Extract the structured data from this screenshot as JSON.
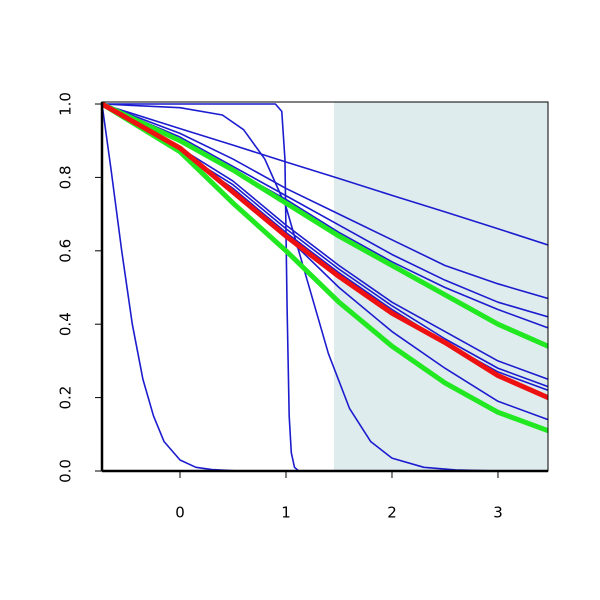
{
  "chart_data": {
    "type": "line",
    "x": [
      -0.736,
      0,
      0.5,
      1,
      1.5,
      2,
      2.5,
      3,
      3.472
    ],
    "xlim": [
      -0.736,
      3.472
    ],
    "ylim": [
      0,
      1
    ],
    "xticks": [
      0,
      1,
      2,
      3
    ],
    "yticks": [
      {
        "value": 0,
        "label": "0.0"
      },
      {
        "value": 0.2,
        "label": "0.2"
      },
      {
        "value": 0.4,
        "label": "0.4"
      },
      {
        "value": 0.6,
        "label": "0.6"
      },
      {
        "value": 0.8,
        "label": "0.8"
      },
      {
        "value": 1,
        "label": "1.0"
      }
    ],
    "shaded_region": {
      "xlim": [
        1.453,
        3.472
      ],
      "color": "#dfeced"
    },
    "series": [
      {
        "color": "#1c1ccf",
        "line_width": 1.6,
        "x": [
          -0.736,
          -0.65,
          -0.55,
          -0.45,
          -0.35,
          -0.25,
          -0.15,
          0,
          0.15,
          0.3,
          0.5,
          1,
          3.472
        ],
        "values": [
          1,
          0.82,
          0.6,
          0.4,
          0.25,
          0.15,
          0.08,
          0.03,
          0.01,
          0.004,
          0.001,
          0,
          0
        ]
      },
      {
        "color": "#1c1ccf",
        "line_width": 1.6,
        "x": [
          -0.736,
          0.5,
          0.9,
          0.96,
          0.99,
          1.01,
          1.03,
          1.05,
          1.08,
          1.12,
          3.472
        ],
        "values": [
          1,
          1,
          1,
          0.98,
          0.85,
          0.45,
          0.15,
          0.05,
          0.01,
          0,
          0
        ]
      },
      {
        "color": "#1c1ccf",
        "line_width": 1.6,
        "x": [
          -0.736,
          0,
          0.4,
          0.6,
          0.8,
          1,
          1.2,
          1.4,
          1.6,
          1.8,
          2,
          2.3,
          2.6,
          3,
          3.472
        ],
        "values": [
          1,
          0.99,
          0.97,
          0.93,
          0.85,
          0.72,
          0.52,
          0.32,
          0.17,
          0.08,
          0.035,
          0.01,
          0.003,
          0,
          0
        ]
      },
      {
        "color": "#1c1ccf",
        "line_width": 1.6,
        "values": [
          1,
          0.933,
          0.888,
          0.842,
          0.797,
          0.751,
          0.706,
          0.66,
          0.616
        ]
      },
      {
        "color": "#1c1ccf",
        "line_width": 1.6,
        "values": [
          1,
          0.92,
          0.85,
          0.77,
          0.7,
          0.63,
          0.56,
          0.51,
          0.47
        ]
      },
      {
        "color": "#1c1ccf",
        "line_width": 1.6,
        "values": [
          1,
          0.91,
          0.83,
          0.75,
          0.67,
          0.59,
          0.52,
          0.46,
          0.42
        ]
      },
      {
        "color": "#1c1ccf",
        "line_width": 1.6,
        "values": [
          1,
          0.9,
          0.82,
          0.74,
          0.65,
          0.57,
          0.5,
          0.44,
          0.39
        ]
      },
      {
        "color": "#1c1ccf",
        "line_width": 1.6,
        "values": [
          1,
          0.88,
          0.79,
          0.67,
          0.56,
          0.46,
          0.38,
          0.3,
          0.25
        ]
      },
      {
        "color": "#1c1ccf",
        "line_width": 1.6,
        "values": [
          1,
          0.87,
          0.78,
          0.66,
          0.55,
          0.45,
          0.36,
          0.28,
          0.23
        ]
      },
      {
        "color": "#1c1ccf",
        "line_width": 1.6,
        "values": [
          1,
          0.87,
          0.77,
          0.65,
          0.54,
          0.44,
          0.35,
          0.27,
          0.22
        ]
      },
      {
        "color": "#1c1ccf",
        "line_width": 1.6,
        "values": [
          1,
          0.87,
          0.76,
          0.64,
          0.5,
          0.38,
          0.28,
          0.19,
          0.14
        ]
      },
      {
        "color": "#22e822",
        "line_width": 5,
        "values": [
          1,
          0.9,
          0.82,
          0.73,
          0.64,
          0.56,
          0.48,
          0.4,
          0.34
        ]
      },
      {
        "color": "#22e822",
        "line_width": 5,
        "values": [
          1,
          0.87,
          0.73,
          0.6,
          0.46,
          0.34,
          0.24,
          0.16,
          0.11
        ]
      },
      {
        "color": "#ee1111",
        "line_width": 5,
        "values": [
          1,
          0.88,
          0.76,
          0.64,
          0.53,
          0.43,
          0.35,
          0.26,
          0.2
        ]
      }
    ]
  }
}
